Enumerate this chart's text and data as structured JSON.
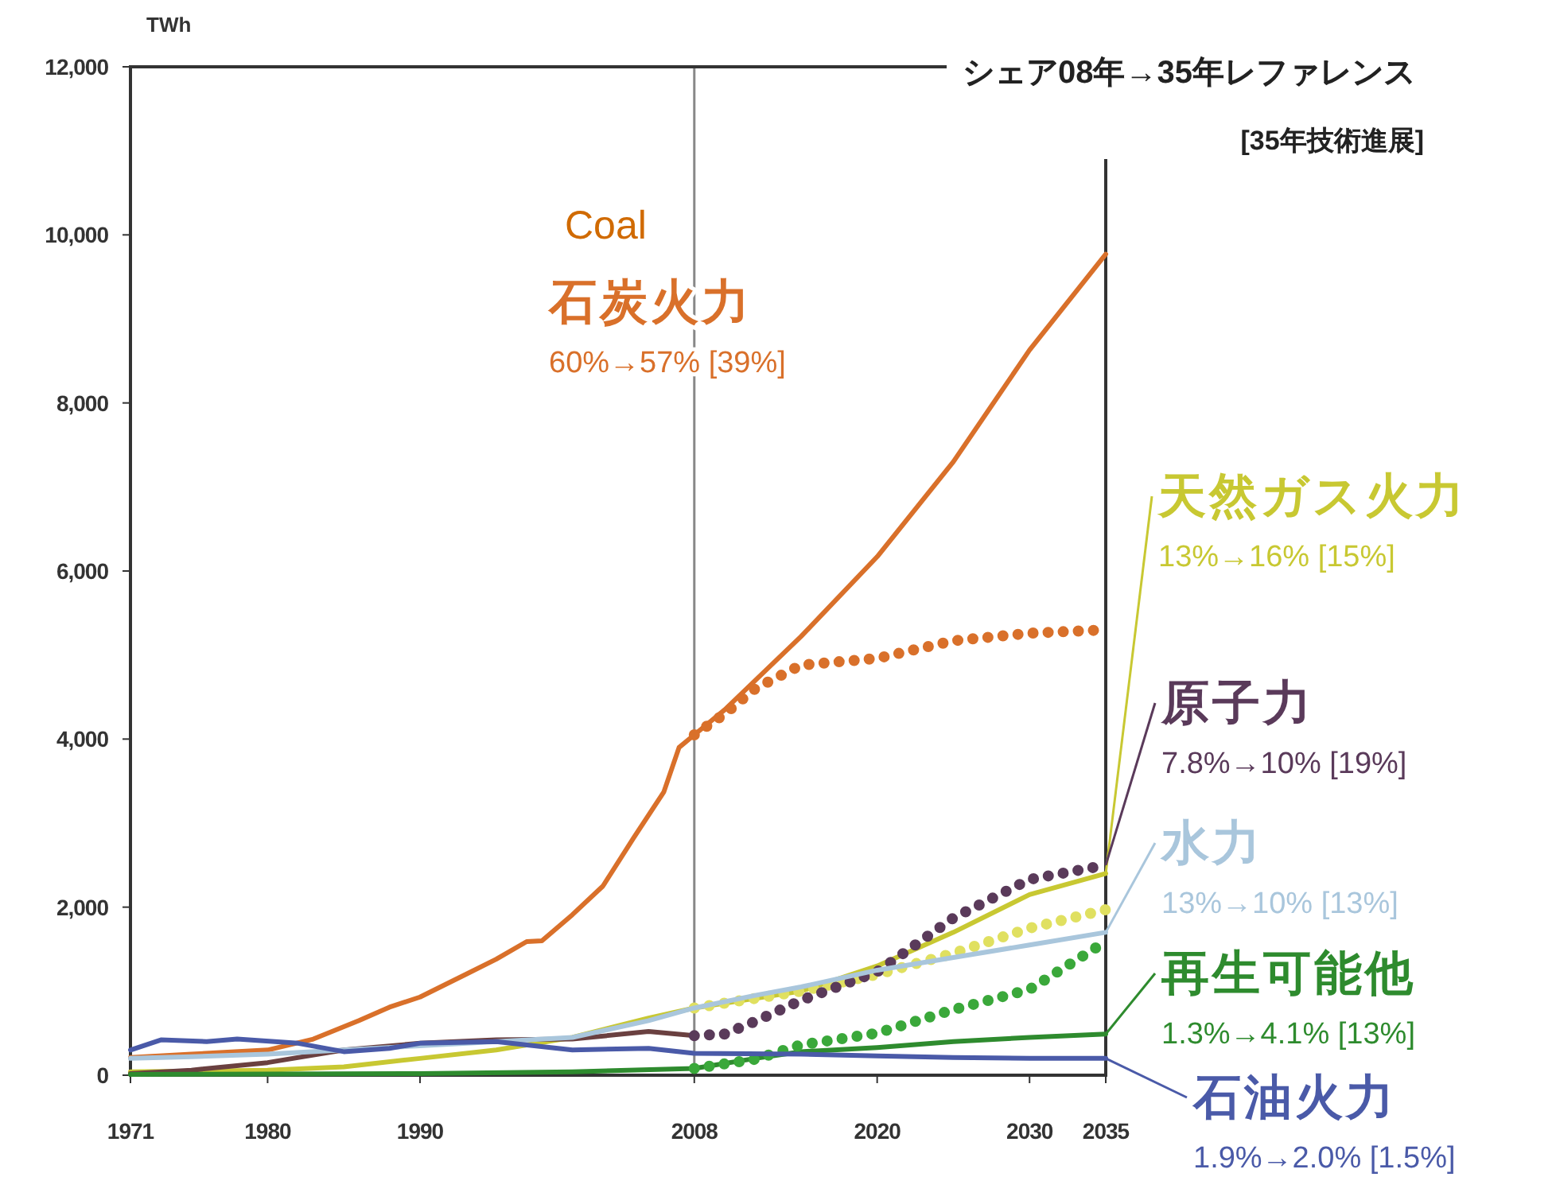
{
  "chart_data": {
    "type": "line",
    "ylabel": "TWh",
    "xlim": [
      1971,
      2035
    ],
    "xticks": [
      1971,
      1980,
      1990,
      2008,
      2020,
      2030,
      2035
    ],
    "ylim": [
      0,
      12000
    ],
    "yticks": [
      0,
      {
        "value": 2000,
        "label": "2,000"
      },
      {
        "value": 4000,
        "label": "4,000"
      },
      {
        "value": 6000,
        "label": "6,000"
      },
      {
        "value": 8000,
        "label": "8,000"
      },
      {
        "value": 10000,
        "label": "10,000"
      },
      {
        "value": 12000,
        "label": "12,000"
      }
    ],
    "grid": false,
    "legend": "right",
    "ref_lines": [
      {
        "axis": "x",
        "value": 2008,
        "color": "#888888"
      }
    ],
    "series": [
      {
        "name": "石炭火力",
        "color": "#d9702a",
        "line_style": "solid",
        "x": [
          1971,
          1975,
          1980,
          1983,
          1986,
          1988,
          1990,
          1993,
          1995,
          1997,
          1998,
          2000,
          2002,
          2004,
          2006,
          2007,
          2008,
          2010,
          2015,
          2020,
          2025,
          2030,
          2035
        ],
        "values": [
          210,
          250,
          300,
          430,
          650,
          810,
          930,
          1200,
          1380,
          1590,
          1600,
          1910,
          2250,
          2820,
          3370,
          3900,
          4050,
          4350,
          5220,
          6170,
          7300,
          8630,
          9770
        ]
      },
      {
        "color": "#d9702a",
        "line_style": "dotted",
        "x": [
          2008,
          2010,
          2012,
          2015,
          2020,
          2025,
          2030,
          2035
        ],
        "values": [
          4050,
          4300,
          4600,
          4880,
          4960,
          5170,
          5260,
          5300
        ]
      },
      {
        "name": "天然ガス火力",
        "color": "#c8c832",
        "line_style": "solid",
        "x": [
          1971,
          1980,
          1985,
          1990,
          1995,
          2000,
          2005,
          2008,
          2015,
          2020,
          2025,
          2030,
          2035
        ],
        "values": [
          40,
          60,
          100,
          200,
          300,
          450,
          680,
          800,
          1000,
          1300,
          1700,
          2150,
          2400
        ]
      },
      {
        "color": "#e0e060",
        "line_style": "dotted",
        "x": [
          2008,
          2015,
          2020,
          2025,
          2030,
          2035
        ],
        "values": [
          800,
          1000,
          1200,
          1450,
          1750,
          1970
        ]
      },
      {
        "color": "#6a4040",
        "line_style": "solid",
        "x": [
          1971,
          1975,
          1980,
          1985,
          1990,
          1995,
          2000,
          2005,
          2008
        ],
        "values": [
          20,
          60,
          150,
          300,
          380,
          420,
          430,
          520,
          470
        ]
      },
      {
        "name": "原子力",
        "color": "#5a3a5a",
        "line_style": "dotted",
        "x": [
          2008,
          2010,
          2012,
          2015,
          2020,
          2025,
          2030,
          2035
        ],
        "values": [
          470,
          490,
          640,
          890,
          1230,
          1870,
          2330,
          2500
        ]
      },
      {
        "name": "水力",
        "color": "#a9c6dc",
        "line_style": "solid",
        "x": [
          1971,
          1975,
          1980,
          1985,
          1990,
          1995,
          2000,
          2005,
          2008,
          2012,
          2015,
          2020,
          2025,
          2030,
          2035
        ],
        "values": [
          200,
          220,
          250,
          300,
          350,
          400,
          450,
          650,
          800,
          950,
          1050,
          1250,
          1400,
          1550,
          1700
        ]
      },
      {
        "name": "再生可能他",
        "color": "#2e8b2e",
        "line_style": "solid",
        "x": [
          1971,
          1990,
          2000,
          2008,
          2012,
          2015,
          2020,
          2025,
          2030,
          2035
        ],
        "values": [
          10,
          20,
          40,
          80,
          200,
          280,
          330,
          400,
          450,
          490
        ]
      },
      {
        "color": "#3aa83a",
        "line_style": "dotted",
        "x": [
          2008,
          2012,
          2015,
          2020,
          2025,
          2030,
          2035
        ],
        "values": [
          80,
          190,
          360,
          500,
          780,
          1020,
          1590
        ]
      },
      {
        "name": "石油火力",
        "color": "#4a5aa8",
        "line_style": "solid",
        "x": [
          1971,
          1973,
          1976,
          1978,
          1982,
          1985,
          1988,
          1990,
          1995,
          2000,
          2005,
          2008,
          2015,
          2020,
          2025,
          2030,
          2035
        ],
        "values": [
          300,
          420,
          400,
          430,
          380,
          280,
          320,
          380,
          400,
          300,
          320,
          260,
          250,
          230,
          210,
          200,
          200
        ]
      }
    ],
    "annotations": [
      "Coal",
      "シェア08年→35年レファレンス",
      "[35年技術進展]",
      "60%→57% [39%]",
      "13%→16% [15%]",
      "7.8%→10% [19%]",
      "13%→10% [13%]",
      "1.3%→4.1% [13%]",
      "1.9%→2.0% [1.5%]"
    ]
  }
}
